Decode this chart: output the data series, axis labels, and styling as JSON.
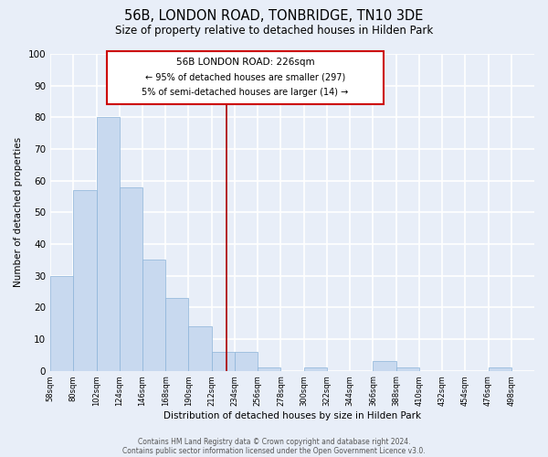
{
  "title": "56B, LONDON ROAD, TONBRIDGE, TN10 3DE",
  "subtitle": "Size of property relative to detached houses in Hilden Park",
  "xlabel": "Distribution of detached houses by size in Hilden Park",
  "ylabel": "Number of detached properties",
  "bar_color": "#c8d9ef",
  "bar_edge_color": "#8bb3d9",
  "background_color": "#e8eef8",
  "grid_color": "#ffffff",
  "bin_edges": [
    58,
    80,
    102,
    124,
    146,
    168,
    190,
    212,
    234,
    256,
    278,
    300,
    322,
    344,
    366,
    388,
    410,
    432,
    454,
    476,
    498
  ],
  "bar_heights": [
    30,
    57,
    80,
    58,
    35,
    23,
    14,
    6,
    6,
    1,
    0,
    1,
    0,
    0,
    3,
    1,
    0,
    0,
    0,
    1
  ],
  "ylim": [
    0,
    100
  ],
  "vline_x": 226,
  "vline_color": "#aa0000",
  "annotation_title": "56B LONDON ROAD: 226sqm",
  "annotation_line1": "← 95% of detached houses are smaller (297)",
  "annotation_line2": "5% of semi-detached houses are larger (14) →",
  "annotation_box_color": "#ffffff",
  "annotation_box_edge": "#cc0000",
  "tick_labels": [
    "58sqm",
    "80sqm",
    "102sqm",
    "124sqm",
    "146sqm",
    "168sqm",
    "190sqm",
    "212sqm",
    "234sqm",
    "256sqm",
    "278sqm",
    "300sqm",
    "322sqm",
    "344sqm",
    "366sqm",
    "388sqm",
    "410sqm",
    "432sqm",
    "454sqm",
    "476sqm",
    "498sqm"
  ],
  "footer_line1": "Contains HM Land Registry data © Crown copyright and database right 2024.",
  "footer_line2": "Contains public sector information licensed under the Open Government Licence v3.0."
}
